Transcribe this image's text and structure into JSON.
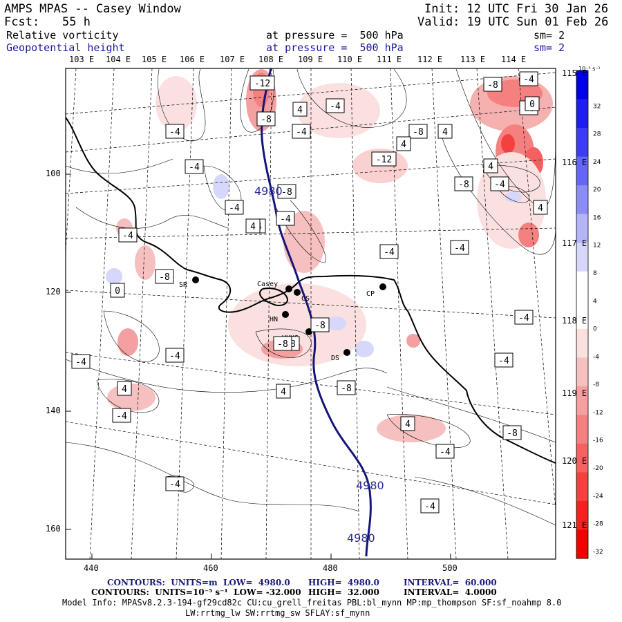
{
  "header": {
    "model": "AMPS MPAS -- Casey Window",
    "init": "Init: 12 UTC Fri 30 Jan 26",
    "fcst_label": "Fcst:",
    "fcst_value": "55 h",
    "valid": "Valid: 19 UTC Sun 01 Feb 26",
    "field1": {
      "name": "Relative vorticity",
      "level": "at pressure =  500 hPa",
      "smooth": "sm= 2"
    },
    "field2": {
      "name": "Geopotential height",
      "level": "at pressure =  500 hPa",
      "smooth": "sm= 2"
    }
  },
  "top_lon_labels": [
    "103 E",
    "104 E",
    "105 E",
    "106 E",
    "107 E",
    "108 E",
    "109 E",
    "110 E",
    "111 E",
    "112 E",
    "113 E",
    "114 E"
  ],
  "right_lon_labels": [
    "115 E",
    "116 E",
    "117 E",
    "118 E",
    "119 E",
    "120 E",
    "121 E"
  ],
  "x_ticks": [
    "440",
    "460",
    "480",
    "500"
  ],
  "y_ticks": [
    "100",
    "120",
    "140",
    "160"
  ],
  "colorbar": {
    "unit": "10⁻⁵ s⁻¹",
    "labels": [
      "32",
      "28",
      "24",
      "20",
      "16",
      "12",
      "8",
      "4",
      "0",
      "-4",
      "-8",
      "-12",
      "-16",
      "-20",
      "-24",
      "-28",
      "-32"
    ],
    "colors": [
      "#0000e6",
      "#1e1ef0",
      "#3c3cf5",
      "#6464f5",
      "#8c8cf5",
      "#b4b4f8",
      "#d7d7fb",
      "#ffffff",
      "#ffffff",
      "#fbe0e0",
      "#f7c0c0",
      "#f5a0a0",
      "#f58080",
      "#f56060",
      "#f54040",
      "#f52020",
      "#f00000"
    ]
  },
  "stations": [
    {
      "name": "SR"
    },
    {
      "name": "Casey"
    },
    {
      "name": "CS"
    },
    {
      "name": "HN"
    },
    {
      "name": "VHKS"
    },
    {
      "name": "DS"
    },
    {
      "name": "CP"
    }
  ],
  "height_labels": [
    "4980",
    "4980",
    "4980"
  ],
  "vort_labels": [
    "-12",
    "-8",
    "-4",
    "-4",
    "-4",
    "-8",
    "-4",
    "-4",
    "-4",
    "-12",
    "-4",
    "-8",
    "4",
    "-8",
    "4",
    "-4",
    "-8",
    "-4",
    "-8",
    "0",
    "-4",
    "-4",
    "-4",
    "-4",
    "-4",
    "-8",
    "-4",
    "-4",
    "-4",
    "4",
    "4",
    "-8",
    "-4",
    "4",
    "-4",
    "-8",
    "-4",
    "-4",
    "-8",
    "4",
    "4",
    "4",
    "4",
    "0",
    "-8"
  ],
  "footer": {
    "line1_a": "CONTOURS:  UNITS=m  LOW=  4980.0",
    "line1_b": "HIGH=  4980.0",
    "line1_c": "INTERVAL=  60.000",
    "line2_a": "CONTOURS:  UNITS=10⁻⁵ s⁻¹  LOW= -32.000",
    "line2_b": "HIGH=  32.000",
    "line2_c": "INTERVAL=  4.0000",
    "line3": "Model Info: MPASv8.2.3-194-gf29cd82c CU:cu_grell_freitas PBL:bl_mynn MP:mp_thompson SF:sf_noahmp 8.0",
    "line4": "LW:rrtmg_lw SW:rrtmg_sw SFLAY:sf_mynn"
  }
}
